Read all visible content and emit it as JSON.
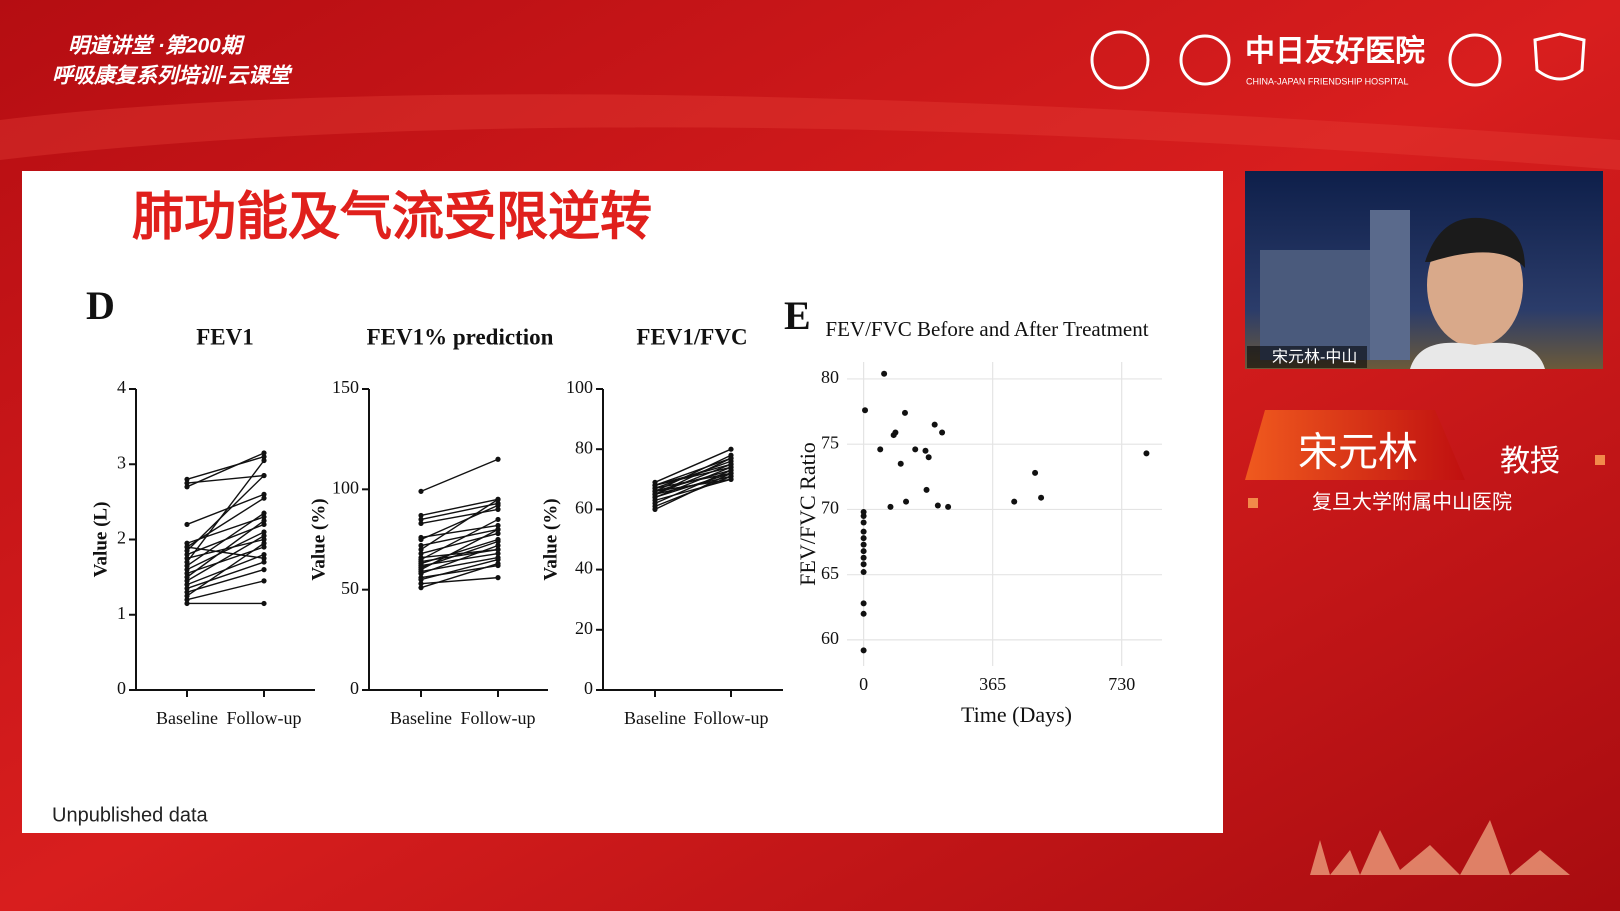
{
  "header": {
    "series_line": "明道讲堂 ·第200期",
    "course": "呼吸康复系列培训-云课堂"
  },
  "logos": {
    "hospital_cn": "中日友好医院",
    "hospital_en": "CHINA-JAPAN FRIENDSHIP HOSPITAL"
  },
  "slide": {
    "title": "肺功能及气流受限逆转",
    "panel_d": "D",
    "panel_e": "E",
    "note": "Unpublished data"
  },
  "speaker": {
    "video_label": "宋元林-中山",
    "name": "宋元林",
    "title": "教授",
    "affiliation": "复旦大学附属中山医院"
  },
  "chart_data": [
    {
      "type": "line",
      "title": "FEV1",
      "y_label": "Value (L)",
      "categories": [
        "Baseline",
        "Follow-up"
      ],
      "color": "#111111",
      "ylim": [
        0,
        4
      ],
      "yticks": [
        0,
        1,
        2,
        3,
        4
      ],
      "grid": false,
      "series": [
        {
          "values": [
            2.8,
            3.1
          ]
        },
        {
          "values": [
            2.75,
            2.85
          ]
        },
        {
          "values": [
            2.7,
            3.15
          ]
        },
        {
          "values": [
            2.2,
            2.6
          ]
        },
        {
          "values": [
            1.95,
            2.3
          ]
        },
        {
          "values": [
            1.9,
            2.55
          ]
        },
        {
          "values": [
            1.85,
            2.85
          ]
        },
        {
          "values": [
            1.8,
            2.2
          ]
        },
        {
          "values": [
            1.75,
            2.0
          ]
        },
        {
          "values": [
            1.7,
            3.05
          ]
        },
        {
          "values": [
            1.6,
            2.1
          ]
        },
        {
          "values": [
            1.55,
            1.9
          ]
        },
        {
          "values": [
            1.5,
            2.25
          ]
        },
        {
          "values": [
            1.45,
            2.05
          ]
        },
        {
          "values": [
            1.4,
            1.8
          ]
        },
        {
          "values": [
            1.35,
            1.7
          ]
        },
        {
          "values": [
            1.3,
            1.6
          ]
        },
        {
          "values": [
            1.25,
            1.95
          ]
        },
        {
          "values": [
            1.2,
            1.45
          ]
        },
        {
          "values": [
            1.15,
            1.15
          ]
        },
        {
          "values": [
            1.65,
            2.35
          ]
        },
        {
          "values": [
            1.9,
            1.75
          ]
        }
      ]
    },
    {
      "type": "line",
      "title": "FEV1% prediction",
      "y_label": "Value (%)",
      "categories": [
        "Baseline",
        "Follow-up"
      ],
      "color": "#111111",
      "ylim": [
        0,
        150
      ],
      "yticks": [
        0,
        50,
        100,
        150
      ],
      "grid": false,
      "series": [
        {
          "values": [
            99,
            115
          ]
        },
        {
          "values": [
            87,
            95
          ]
        },
        {
          "values": [
            85,
            93
          ]
        },
        {
          "values": [
            83,
            90
          ]
        },
        {
          "values": [
            76,
            82
          ]
        },
        {
          "values": [
            75,
            92
          ]
        },
        {
          "values": [
            72,
            80
          ]
        },
        {
          "values": [
            70,
            95
          ]
        },
        {
          "values": [
            68,
            78
          ]
        },
        {
          "values": [
            66,
            70
          ]
        },
        {
          "values": [
            65,
            85
          ]
        },
        {
          "values": [
            63,
            75
          ]
        },
        {
          "values": [
            62,
            68
          ]
        },
        {
          "values": [
            60,
            80
          ]
        },
        {
          "values": [
            59,
            66
          ]
        },
        {
          "values": [
            58,
            72
          ]
        },
        {
          "values": [
            56,
            62
          ]
        },
        {
          "values": [
            55,
            65
          ]
        },
        {
          "values": [
            53,
            56
          ]
        },
        {
          "values": [
            51,
            63
          ]
        },
        {
          "values": [
            64,
            70
          ]
        },
        {
          "values": [
            61,
            74
          ]
        }
      ]
    },
    {
      "type": "line",
      "title": "FEV1/FVC",
      "y_label": "Value (%)",
      "categories": [
        "Baseline",
        "Follow-up"
      ],
      "color": "#111111",
      "ylim": [
        0,
        100
      ],
      "yticks": [
        0,
        20,
        40,
        60,
        80,
        100
      ],
      "grid": false,
      "series": [
        {
          "values": [
            69,
            80
          ]
        },
        {
          "values": [
            68,
            77
          ]
        },
        {
          "values": [
            68,
            74
          ]
        },
        {
          "values": [
            67,
            76
          ]
        },
        {
          "values": [
            67,
            72
          ]
        },
        {
          "values": [
            66,
            78
          ]
        },
        {
          "values": [
            66,
            73
          ]
        },
        {
          "values": [
            65,
            75
          ]
        },
        {
          "values": [
            65,
            71
          ]
        },
        {
          "values": [
            64,
            74
          ]
        },
        {
          "values": [
            64,
            72
          ]
        },
        {
          "values": [
            63,
            70
          ]
        },
        {
          "values": [
            62,
            73
          ]
        },
        {
          "values": [
            61,
            71
          ]
        },
        {
          "values": [
            60,
            72
          ]
        },
        {
          "values": [
            68,
            75
          ]
        },
        {
          "values": [
            66,
            70
          ]
        },
        {
          "values": [
            65,
            77
          ]
        }
      ]
    },
    {
      "type": "scatter",
      "title": "FEV/FVC Before and After Treatment",
      "x_label": "Time (Days)",
      "y_label": "FEV/FVC Ratio",
      "color": "#111111",
      "grid": true,
      "xlim": [
        -47,
        844
      ],
      "ylim": [
        58,
        81.3
      ],
      "xticks": [
        0,
        365,
        730
      ],
      "yticks": [
        60,
        65,
        70,
        75,
        80
      ],
      "x": [
        4,
        58,
        47,
        85,
        90,
        117,
        120,
        105,
        76,
        146,
        175,
        184,
        201,
        222,
        178,
        210,
        239,
        485,
        502,
        426,
        800,
        0,
        0,
        0,
        0,
        0,
        0,
        0,
        0,
        0,
        0,
        0,
        0,
        0
      ],
      "values": [
        77.6,
        80.4,
        74.6,
        75.7,
        75.9,
        77.4,
        70.6,
        73.5,
        70.2,
        74.6,
        74.5,
        74.0,
        76.5,
        75.9,
        71.5,
        70.3,
        70.2,
        72.8,
        70.9,
        70.6,
        74.3,
        59.2,
        62.0,
        62.8,
        65.2,
        65.8,
        66.3,
        66.8,
        67.3,
        67.8,
        68.3,
        69.0,
        69.5,
        69.8
      ]
    }
  ]
}
